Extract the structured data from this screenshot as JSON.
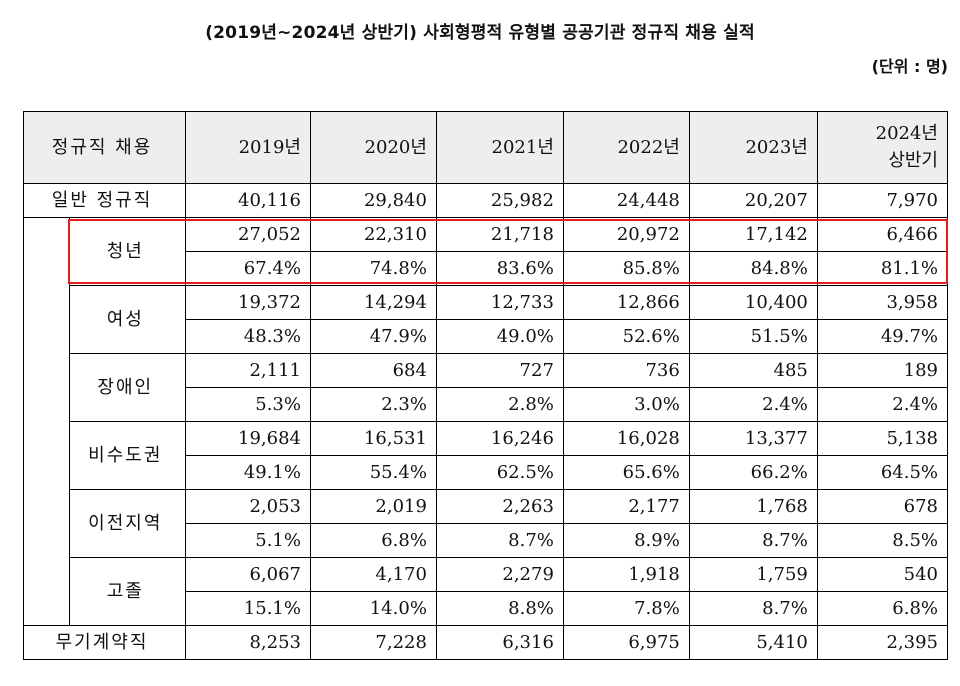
{
  "title": "(2019년~2024년 상반기) 사회형평적 유형별 공공기관 정규직 채용 실적",
  "unit": "(단위 : 명)",
  "table": {
    "header": {
      "label": "정규직 채용",
      "years": [
        "2019년",
        "2020년",
        "2021년",
        "2022년",
        "2023년"
      ],
      "last_line1": "2024년",
      "last_line2": "상반기"
    },
    "general": {
      "label": "일반 정규직",
      "values": [
        "40,116",
        "29,840",
        "25,982",
        "24,448",
        "20,207",
        "7,970"
      ]
    },
    "groups": [
      {
        "label": "청년",
        "counts": [
          "27,052",
          "22,310",
          "21,718",
          "20,972",
          "17,142",
          "6,466"
        ],
        "ratios": [
          "67.4%",
          "74.8%",
          "83.6%",
          "85.8%",
          "84.8%",
          "81.1%"
        ]
      },
      {
        "label": "여성",
        "counts": [
          "19,372",
          "14,294",
          "12,733",
          "12,866",
          "10,400",
          "3,958"
        ],
        "ratios": [
          "48.3%",
          "47.9%",
          "49.0%",
          "52.6%",
          "51.5%",
          "49.7%"
        ]
      },
      {
        "label": "장애인",
        "counts": [
          "2,111",
          "684",
          "727",
          "736",
          "485",
          "189"
        ],
        "ratios": [
          "5.3%",
          "2.3%",
          "2.8%",
          "3.0%",
          "2.4%",
          "2.4%"
        ]
      },
      {
        "label": "비수도권",
        "counts": [
          "19,684",
          "16,531",
          "16,246",
          "16,028",
          "13,377",
          "5,138"
        ],
        "ratios": [
          "49.1%",
          "55.4%",
          "62.5%",
          "65.6%",
          "66.2%",
          "64.5%"
        ]
      },
      {
        "label": "이전지역",
        "counts": [
          "2,053",
          "2,019",
          "2,263",
          "2,177",
          "1,768",
          "678"
        ],
        "ratios": [
          "5.1%",
          "6.8%",
          "8.7%",
          "8.9%",
          "8.7%",
          "8.5%"
        ]
      },
      {
        "label": "고졸",
        "counts": [
          "6,067",
          "4,170",
          "2,279",
          "1,918",
          "1,759",
          "540"
        ],
        "ratios": [
          "15.1%",
          "14.0%",
          "8.8%",
          "7.8%",
          "8.7%",
          "6.8%"
        ]
      }
    ],
    "contract": {
      "label": "무기계약직",
      "values": [
        "8,253",
        "7,228",
        "6,316",
        "6,975",
        "5,410",
        "2,395"
      ]
    }
  },
  "highlight_color": "#e02020"
}
